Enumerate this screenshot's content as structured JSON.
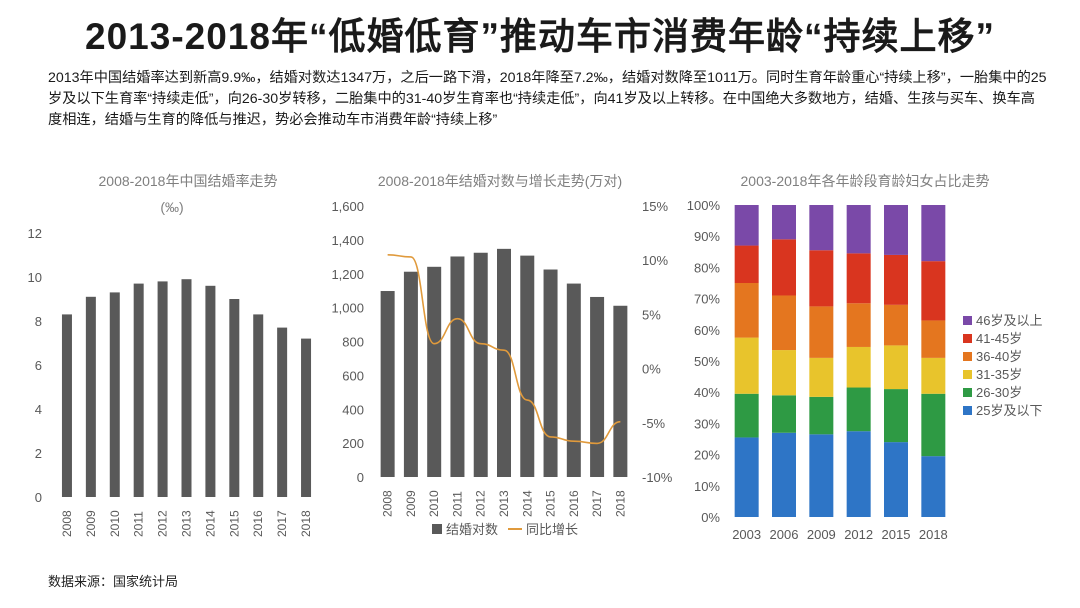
{
  "header": {
    "title": "2013-2018年“低婚低育”推动车市消费年龄“持续上移”",
    "description": "2013年中国结婚率达到新高9.9‰，结婚对数达1347万，之后一路下滑，2018年降至7.2‰，结婚对数降至1011万。同时生育年龄重心“持续上移”，一胎集中的25岁及以下生育率“持续走低”，向26-30岁转移，二胎集中的31-40岁生育率也“持续走低”，向41岁及以上转移。在中国绝大多数地方，结婚、生孩与买车、换车高度相连，结婚与生育的降低与推迟，势必会推动车市消费年龄“持续上移”"
  },
  "source": "数据来源：国家统计局",
  "colors": {
    "bar": "#595959",
    "line": "#e09a3c",
    "axis_text": "#595959",
    "title_text": "#7f7f7f"
  },
  "chart_data": [
    {
      "type": "bar",
      "title": "2008-2018年中国结婚率走势",
      "subtitle": "(‰)",
      "categories": [
        "2008",
        "2009",
        "2010",
        "2011",
        "2012",
        "2013",
        "2014",
        "2015",
        "2016",
        "2017",
        "2018"
      ],
      "values": [
        8.3,
        9.1,
        9.3,
        9.7,
        9.8,
        9.9,
        9.6,
        9.0,
        8.3,
        7.7,
        7.2
      ],
      "ylim": [
        0,
        12
      ],
      "yticks": [
        "0",
        "2",
        "4",
        "6",
        "8",
        "10",
        "12"
      ],
      "grid": false
    },
    {
      "type": "bar+line",
      "title": "2008-2018年结婚对数与增长走势(万对)",
      "categories": [
        "2008",
        "2009",
        "2010",
        "2011",
        "2012",
        "2013",
        "2014",
        "2015",
        "2016",
        "2017",
        "2018"
      ],
      "series": [
        {
          "name": "结婚对数",
          "type": "bar",
          "axis": "left",
          "values": [
            1098,
            1212,
            1241,
            1302,
            1324,
            1347,
            1307,
            1225,
            1142,
            1063,
            1011
          ]
        },
        {
          "name": "同比增长",
          "type": "line",
          "axis": "right",
          "values": [
            10.5,
            10.3,
            2.3,
            4.6,
            2.3,
            1.7,
            -2.9,
            -6.3,
            -6.7,
            -6.9,
            -4.9
          ]
        }
      ],
      "ylim_left": [
        0,
        1600
      ],
      "yticks_left": [
        "0",
        "200",
        "400",
        "600",
        "800",
        "1,000",
        "1,200",
        "1,400",
        "1,600"
      ],
      "ylim_right": [
        -10,
        15
      ],
      "yticks_right": [
        "-10%",
        "-5%",
        "0%",
        "5%",
        "10%",
        "15%"
      ],
      "legend": [
        "结婚对数",
        "同比增长"
      ],
      "legend_position": "bottom"
    },
    {
      "type": "stacked-bar-100",
      "title": "2003-2018年各年龄段育龄妇女占比走势",
      "categories": [
        "2003",
        "2006",
        "2009",
        "2012",
        "2015",
        "2018"
      ],
      "series": [
        {
          "name": "25岁及以下",
          "color": "#2e75c6",
          "values": [
            25.5,
            27,
            26.5,
            27.5,
            24,
            19.5
          ]
        },
        {
          "name": "26-30岁",
          "color": "#2e9a44",
          "values": [
            14,
            12,
            12,
            14,
            17,
            20
          ]
        },
        {
          "name": "31-35岁",
          "color": "#e8c42c",
          "values": [
            18,
            14.5,
            12.5,
            13,
            14,
            11.5
          ]
        },
        {
          "name": "36-40岁",
          "color": "#e4761f",
          "values": [
            17.5,
            17.5,
            16.5,
            14,
            13,
            12
          ]
        },
        {
          "name": "41-45岁",
          "color": "#d9351f",
          "values": [
            12,
            18,
            18,
            16,
            16,
            19
          ]
        },
        {
          "name": "46岁及以上",
          "color": "#7a49a8",
          "values": [
            13,
            11,
            14.5,
            15.5,
            16,
            18
          ]
        }
      ],
      "ylim": [
        0,
        100
      ],
      "yticks": [
        "0%",
        "10%",
        "20%",
        "30%",
        "40%",
        "50%",
        "60%",
        "70%",
        "80%",
        "90%",
        "100%"
      ],
      "legend_order": [
        "46岁及以上",
        "41-45岁",
        "36-40岁",
        "31-35岁",
        "26-30岁",
        "25岁及以下"
      ],
      "legend_position": "right"
    }
  ]
}
